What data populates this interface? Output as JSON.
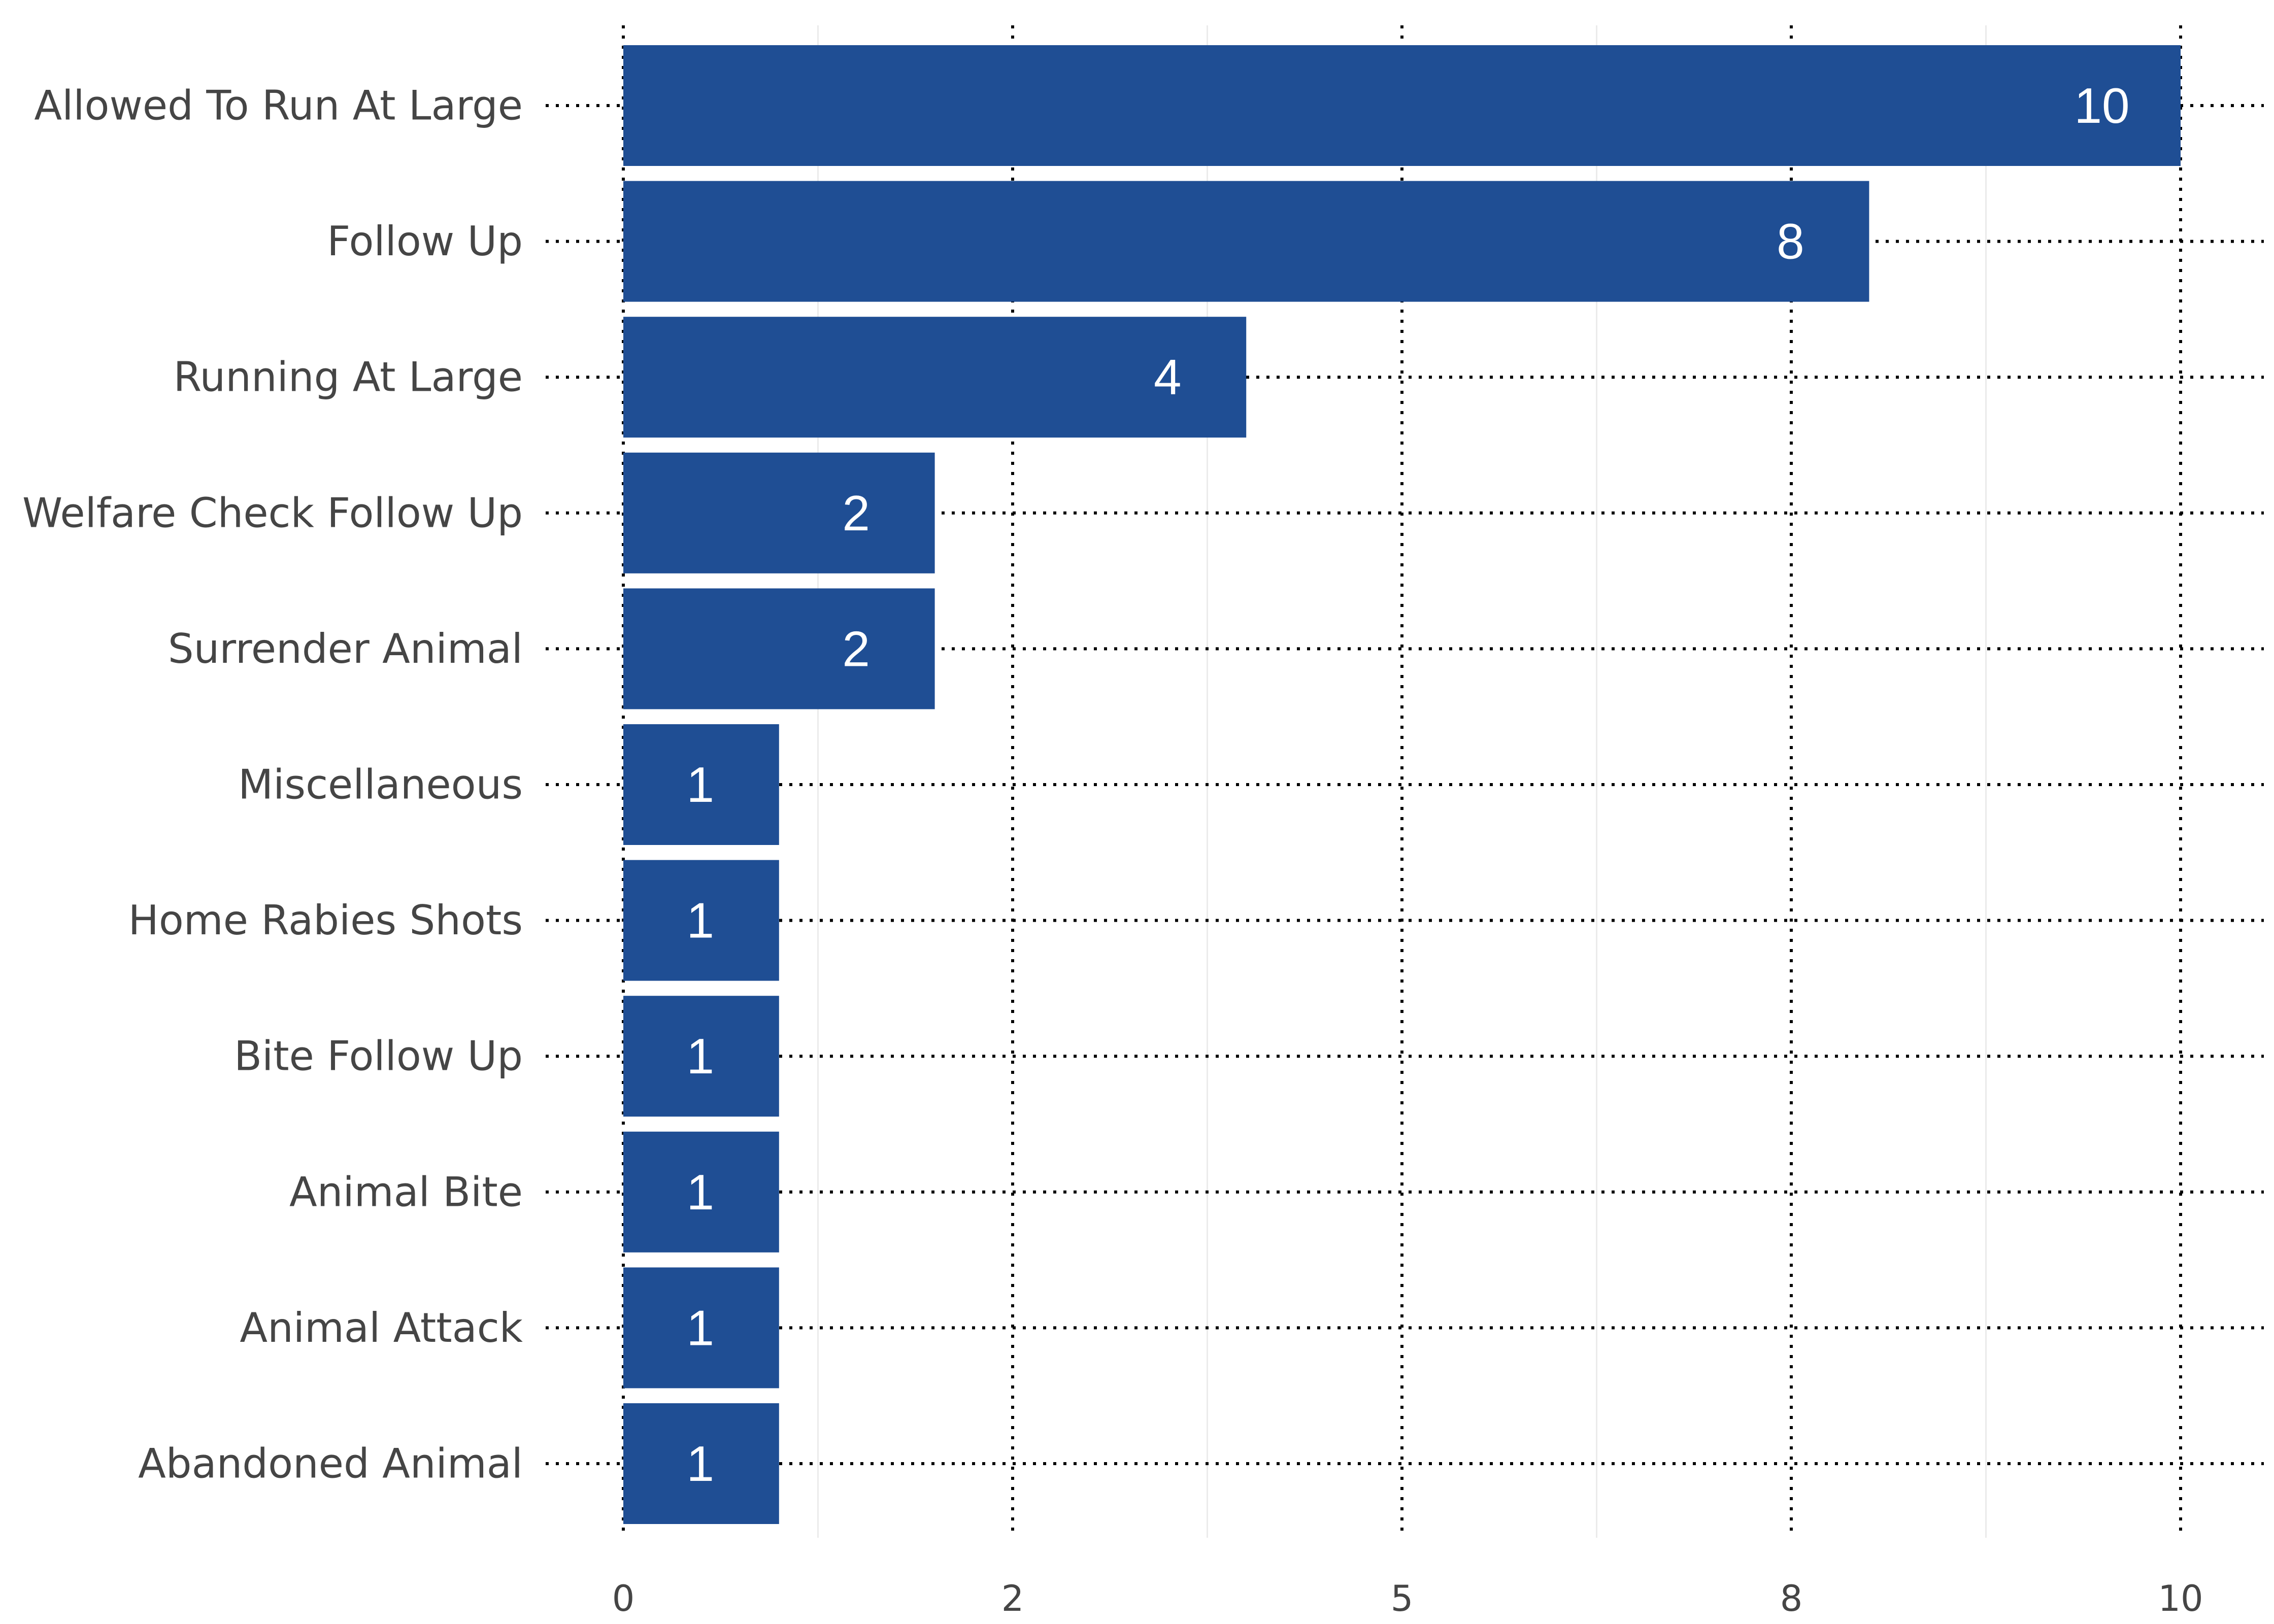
{
  "chart_data": {
    "type": "bar",
    "orientation": "horizontal",
    "categories": [
      "Allowed To Run At Large",
      "Follow Up",
      "Running At Large",
      "Welfare Check Follow Up",
      "Surrender Animal",
      "Miscellaneous",
      "Home Rabies Shots",
      "Bite Follow Up",
      "Animal Bite",
      "Animal Attack",
      "Abandoned Animal"
    ],
    "values": [
      10,
      8,
      4,
      2,
      2,
      1,
      1,
      1,
      1,
      1,
      1
    ],
    "value_labels": [
      "10",
      "8",
      "4",
      "2",
      "2",
      "1",
      "1",
      "1",
      "1",
      "1",
      "1"
    ],
    "x_ticks": [
      "0",
      "2",
      "5",
      "8",
      "10"
    ],
    "xlim": [
      0,
      10
    ],
    "title": "",
    "xlabel": "",
    "ylabel": "",
    "grid": true,
    "legend": "none",
    "colors": {
      "bar": "#1F4E94",
      "bar_label": "#FFFFFF",
      "text": "#454545",
      "grid_major": "#000000",
      "grid_minor": "#EBEBEB"
    }
  }
}
